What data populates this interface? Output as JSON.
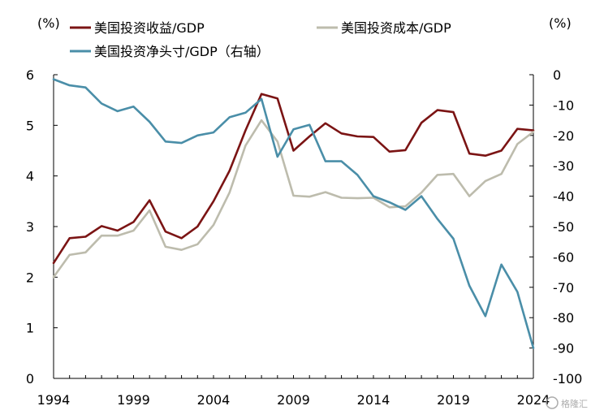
{
  "chart_data": {
    "type": "line",
    "left_unit": "(%)",
    "right_unit": "(%)",
    "x": [
      1994,
      1995,
      1996,
      1997,
      1998,
      1999,
      2000,
      2001,
      2002,
      2003,
      2004,
      2005,
      2006,
      2007,
      2008,
      2009,
      2010,
      2011,
      2012,
      2013,
      2014,
      2015,
      2016,
      2017,
      2018,
      2019,
      2020,
      2021,
      2022,
      2023,
      2024
    ],
    "x_ticks": [
      "1994",
      "1999",
      "2004",
      "2009",
      "2014",
      "2019",
      "2024"
    ],
    "x_tick_values": [
      1994,
      1999,
      2004,
      2009,
      2014,
      2019,
      2024
    ],
    "xlim": [
      1994,
      2024
    ],
    "y_left": {
      "lim": [
        0,
        6
      ],
      "ticks": [
        "0",
        "1",
        "2",
        "3",
        "4",
        "5",
        "6"
      ],
      "tick_values": [
        0,
        1,
        2,
        3,
        4,
        5,
        6
      ]
    },
    "y_right": {
      "lim": [
        -100,
        0
      ],
      "ticks": [
        "-100",
        "-90",
        "-80",
        "-70",
        "-60",
        "-50",
        "-40",
        "-30",
        "-20",
        "-10",
        "0"
      ],
      "tick_values": [
        -100,
        -90,
        -80,
        -70,
        -60,
        -50,
        -40,
        -30,
        -20,
        -10,
        0
      ]
    },
    "series": [
      {
        "name": "美国投资收益/GDP",
        "axis": "left",
        "color": "#7b1414",
        "values": [
          2.28,
          2.77,
          2.8,
          3.01,
          2.92,
          3.09,
          3.52,
          2.9,
          2.77,
          3.0,
          3.5,
          4.1,
          4.9,
          5.62,
          5.53,
          4.5,
          4.78,
          5.04,
          4.84,
          4.78,
          4.77,
          4.48,
          4.51,
          5.05,
          5.3,
          5.26,
          4.44,
          4.4,
          4.5,
          4.93,
          4.9
        ]
      },
      {
        "name": "美国投资成本/GDP",
        "axis": "left",
        "color": "#bdbcad",
        "values": [
          2.0,
          2.44,
          2.49,
          2.82,
          2.82,
          2.92,
          3.32,
          2.6,
          2.54,
          2.65,
          3.03,
          3.67,
          4.6,
          5.1,
          4.68,
          3.61,
          3.59,
          3.68,
          3.57,
          3.56,
          3.57,
          3.38,
          3.4,
          3.67,
          4.02,
          4.04,
          3.6,
          3.9,
          4.04,
          4.63,
          4.87
        ]
      },
      {
        "name": "美国投资净头寸/GDP（右轴）",
        "axis": "right",
        "color": "#4a8ea8",
        "values": [
          -1.5,
          -3.5,
          -4.2,
          -9.5,
          -12,
          -10.5,
          -15.5,
          -22,
          -22.5,
          -20,
          -19,
          -14,
          -12.5,
          -8,
          -27,
          -18,
          -16.5,
          -28.5,
          -28.5,
          -33,
          -40,
          -42,
          -44.5,
          -40,
          -47.5,
          -54,
          -69.5,
          -79.5,
          -62.5,
          -71.5,
          -90
        ]
      }
    ],
    "legend_position": "top",
    "grid": false
  },
  "watermark": {
    "text": "格隆汇"
  }
}
